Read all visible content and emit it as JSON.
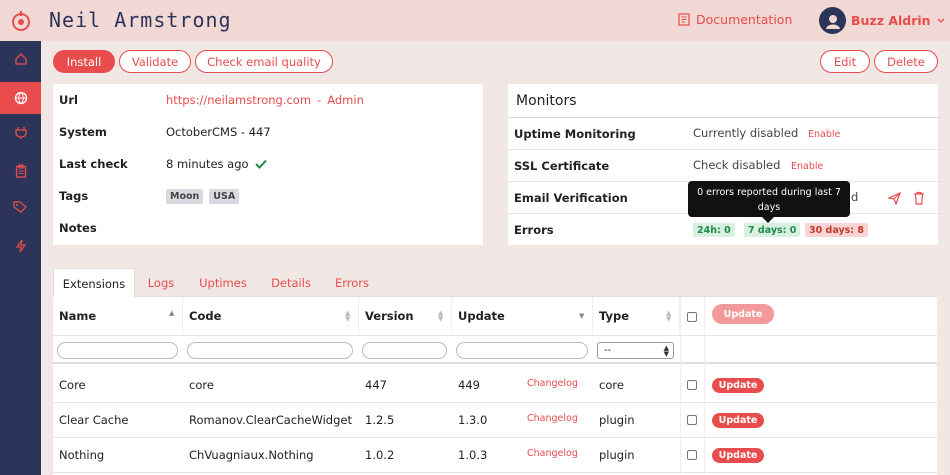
{
  "header": {
    "title": "Neil Armstrong",
    "doc_label": "Documentation",
    "user_name": "Buzz Aldrin"
  },
  "sidebar": {
    "items": [
      {
        "name": "home-icon"
      },
      {
        "name": "globe-icon",
        "active": true
      },
      {
        "name": "plug-icon"
      },
      {
        "name": "clipboard-icon"
      },
      {
        "name": "tags-icon"
      },
      {
        "name": "bolt-icon"
      }
    ]
  },
  "actions": {
    "install": "Install",
    "validate": "Validate",
    "check_email": "Check email quality",
    "edit": "Edit",
    "delete": "Delete"
  },
  "info": {
    "url_label": "Url",
    "url_value": "https://neilamstrong.com",
    "url_sep": "-",
    "admin_link": "Admin",
    "system_label": "System",
    "system_value": "OctoberCMS - 447",
    "lastcheck_label": "Last check",
    "lastcheck_value": "8 minutes ago",
    "tags_label": "Tags",
    "tags": [
      "Moon",
      "USA"
    ],
    "notes_label": "Notes"
  },
  "monitors": {
    "title": "Monitors",
    "uptime_label": "Uptime Monitoring",
    "uptime_value": "Currently disabled",
    "uptime_action": "Enable",
    "ssl_label": "SSL Certificate",
    "ssl_value": "Check disabled",
    "ssl_action": "Enable",
    "email_label": "Email Verification",
    "email_value_tail": "d",
    "errors_label": "Errors",
    "err_24h": "24h: 0",
    "err_7d": "7 days: 0",
    "err_30d": "30 days: 8",
    "tooltip_line1": "0 errors reported during last 7",
    "tooltip_line2": "days"
  },
  "tabs": [
    "Extensions",
    "Logs",
    "Uptimes",
    "Details",
    "Errors"
  ],
  "table": {
    "headers": [
      "Name",
      "Code",
      "Version",
      "Update",
      "Type"
    ],
    "update_all": "Update",
    "type_filter": "--",
    "changelog": "Changelog",
    "row_update": "Update",
    "rows": [
      {
        "name": "Core",
        "code": "core",
        "version": "447",
        "update": "449",
        "type": "core"
      },
      {
        "name": "Clear Cache",
        "code": "Romanov.ClearCacheWidget",
        "version": "1.2.5",
        "update": "1.3.0",
        "type": "plugin"
      },
      {
        "name": "Nothing",
        "code": "ChVuagniaux.Nothing",
        "version": "1.0.2",
        "update": "1.0.3",
        "type": "plugin"
      }
    ]
  },
  "colors": {
    "accent": "#e84c4c",
    "sidebar": "#2c3559",
    "header": "#f2d8d4"
  }
}
